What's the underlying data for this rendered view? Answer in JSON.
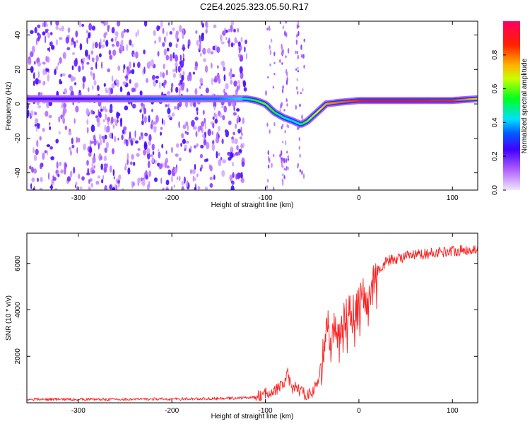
{
  "title": "C2E4.2025.323.05.50.R17",
  "chart_data": [
    {
      "type": "heatmap",
      "title": "",
      "xlabel": "Height of straight line (km)",
      "ylabel": "Frequency (Hz)",
      "xlim": [
        -355,
        127
      ],
      "ylim": [
        -50,
        48
      ],
      "xticks": [
        -300,
        -200,
        -100,
        0,
        100
      ],
      "yticks": [
        -40,
        -20,
        0,
        20,
        40
      ],
      "xtick_labels": [
        "-300",
        "-200",
        "-100",
        "0",
        "100"
      ],
      "ytick_labels": [
        "-40",
        "-20",
        "0",
        "20",
        "40"
      ],
      "colorbar": {
        "label": "Normalized spectral amplitude",
        "range": [
          0.0,
          1.0
        ],
        "ticks": [
          0.0,
          0.2,
          0.4,
          0.6,
          0.8
        ],
        "tick_labels": [
          "0.0",
          "0.2",
          "0.4",
          "0.6",
          "0.8"
        ],
        "colors": [
          "#e8d8ff",
          "#8a2be2",
          "#0000ff",
          "#00e0ff",
          "#00ff00",
          "#ffff00",
          "#ff8000",
          "#ff0000",
          "#ff0080"
        ]
      },
      "ridge": {
        "x": [
          -355,
          -300,
          -250,
          -200,
          -150,
          -120,
          -110,
          -100,
          -90,
          -80,
          -70,
          -62,
          -55,
          -45,
          -35,
          -20,
          0,
          20,
          50,
          80,
          100,
          127
        ],
        "freq": [
          3,
          3,
          3,
          3,
          3,
          3,
          2,
          0,
          -5,
          -8,
          -10,
          -12,
          -10,
          -5,
          0,
          1,
          2,
          2,
          2,
          2,
          2,
          3
        ],
        "amplitude": [
          0.25,
          0.25,
          0.3,
          0.35,
          0.35,
          0.45,
          0.55,
          0.6,
          0.55,
          0.45,
          0.4,
          0.5,
          0.6,
          0.65,
          0.75,
          0.8,
          0.85,
          0.9,
          0.9,
          0.85,
          0.85,
          0.7
        ]
      },
      "noise_region_x": [
        -355,
        -120
      ]
    },
    {
      "type": "line",
      "title": "",
      "xlabel": "Height of straight line (km)",
      "ylabel": "SNR (10 * v/v)",
      "xlim": [
        -355,
        127
      ],
      "ylim": [
        0,
        7300
      ],
      "xticks": [
        -300,
        -200,
        -100,
        0,
        100
      ],
      "yticks": [
        2000,
        4000,
        6000
      ],
      "xtick_labels": [
        "-300",
        "-200",
        "-100",
        "0",
        "100"
      ],
      "ytick_labels": [
        "2000",
        "4000",
        "6000"
      ],
      "series": [
        {
          "name": "SNR",
          "color": "#ff2020",
          "x": [
            -355,
            -300,
            -250,
            -200,
            -150,
            -110,
            -100,
            -95,
            -90,
            -85,
            -80,
            -76,
            -72,
            -68,
            -60,
            -55,
            -50,
            -45,
            -40,
            -35,
            -30,
            -25,
            -20,
            -15,
            -10,
            -5,
            0,
            5,
            10,
            15,
            20,
            25,
            30,
            40,
            50,
            60,
            70,
            80,
            90,
            100,
            110,
            120,
            127
          ],
          "y": [
            150,
            150,
            150,
            160,
            180,
            230,
            380,
            500,
            520,
            650,
            850,
            1250,
            500,
            700,
            420,
            350,
            450,
            800,
            1600,
            3000,
            3200,
            3000,
            3400,
            3500,
            3800,
            3900,
            4200,
            4500,
            4700,
            5200,
            5700,
            5900,
            6100,
            6200,
            6300,
            6350,
            6400,
            6450,
            6500,
            6550,
            6550,
            6600,
            6600
          ]
        }
      ]
    }
  ]
}
